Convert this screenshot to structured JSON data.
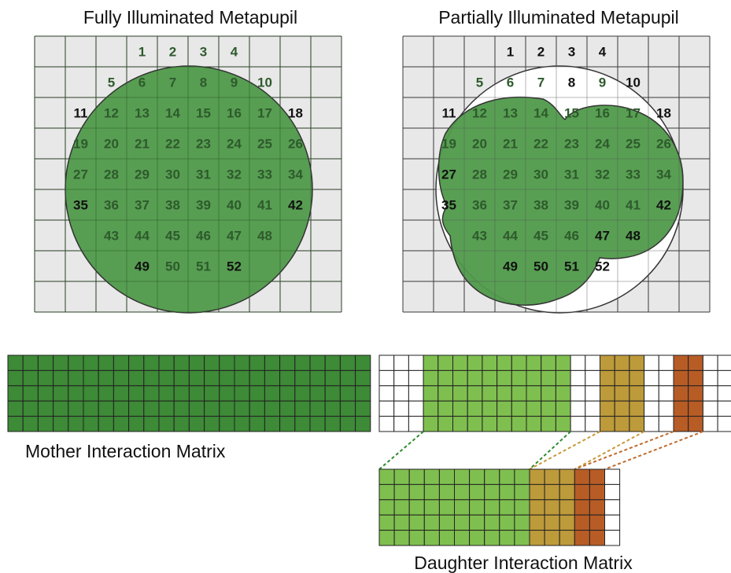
{
  "labels": {
    "full_title": "Fully Illuminated Metapupil",
    "partial_title": "Partially Illuminated Metapupil",
    "mother_label": "Mother Interaction Matrix",
    "daughter_label": "Daughter Interaction Matrix"
  },
  "full_metapupil": {
    "grid_cols": 10,
    "grid_rows": 9,
    "subaperture_numbers": [
      [
        "",
        "",
        "",
        "1",
        "2",
        "3",
        "4",
        "",
        "",
        ""
      ],
      [
        "",
        "",
        "5",
        "6",
        "7",
        "8",
        "9",
        "10",
        "",
        ""
      ],
      [
        "",
        "11",
        "12",
        "13",
        "14",
        "15",
        "16",
        "17",
        "18",
        ""
      ],
      [
        "",
        "19",
        "20",
        "21",
        "22",
        "23",
        "24",
        "25",
        "26",
        ""
      ],
      [
        "",
        "27",
        "28",
        "29",
        "30",
        "31",
        "32",
        "33",
        "34",
        ""
      ],
      [
        "",
        "35",
        "36",
        "37",
        "38",
        "39",
        "40",
        "41",
        "42",
        ""
      ],
      [
        "",
        "",
        "43",
        "44",
        "45",
        "46",
        "47",
        "48",
        "",
        ""
      ],
      [
        "",
        "",
        "",
        "49",
        "50",
        "51",
        "52",
        "",
        "",
        ""
      ],
      [
        "",
        "",
        "",
        "",
        "",
        "",
        "",
        "",
        "",
        ""
      ]
    ],
    "illuminated": "all"
  },
  "partial_metapupil": {
    "grid_cols": 10,
    "grid_rows": 9,
    "subaperture_numbers": [
      [
        "",
        "",
        "",
        "1",
        "2",
        "3",
        "4",
        "",
        "",
        ""
      ],
      [
        "",
        "",
        "5",
        "6",
        "7",
        "8",
        "9",
        "10",
        "",
        ""
      ],
      [
        "",
        "11",
        "12",
        "13",
        "14",
        "15",
        "16",
        "17",
        "18",
        ""
      ],
      [
        "",
        "19",
        "20",
        "21",
        "22",
        "23",
        "24",
        "25",
        "26",
        ""
      ],
      [
        "",
        "27",
        "28",
        "29",
        "30",
        "31",
        "32",
        "33",
        "34",
        ""
      ],
      [
        "",
        "35",
        "36",
        "37",
        "38",
        "39",
        "40",
        "41",
        "42",
        ""
      ],
      [
        "",
        "",
        "43",
        "44",
        "45",
        "46",
        "47",
        "48",
        "",
        ""
      ],
      [
        "",
        "",
        "",
        "49",
        "50",
        "51",
        "52",
        "",
        "",
        ""
      ],
      [
        "",
        "",
        "",
        "",
        "",
        "",
        "",
        "",
        "",
        ""
      ]
    ],
    "unilluminated_numbers": [
      "1",
      "2",
      "3",
      "4",
      "27",
      "35",
      "42",
      "47",
      "48",
      "51",
      "52"
    ]
  },
  "mother_matrix": {
    "cols": 24,
    "rows": 5,
    "color": "#3d8a37"
  },
  "partial_matrix": {
    "cols": 24,
    "rows": 5,
    "blocks": [
      {
        "start": 0,
        "count": 3,
        "color": "#ffffff"
      },
      {
        "start": 3,
        "count": 10,
        "color": "#7fbf4f"
      },
      {
        "start": 13,
        "count": 2,
        "color": "#ffffff"
      },
      {
        "start": 15,
        "count": 3,
        "color": "#bd9a3a"
      },
      {
        "start": 18,
        "count": 2,
        "color": "#ffffff"
      },
      {
        "start": 20,
        "count": 2,
        "color": "#b85c26"
      },
      {
        "start": 22,
        "count": 1,
        "color": "#ffffff"
      }
    ]
  },
  "daughter_matrix": {
    "cols": 16,
    "rows": 5,
    "blocks": [
      {
        "start": 0,
        "count": 10,
        "color": "#7fbf4f"
      },
      {
        "start": 10,
        "count": 3,
        "color": "#bd9a3a"
      },
      {
        "start": 13,
        "count": 2,
        "color": "#b85c26"
      }
    ]
  },
  "colors": {
    "grid_bg": "#e8e8e8",
    "grid_line": "#222222",
    "pupil_fill": "#4f9a4a",
    "pupil_edge": "#333333",
    "num_on_pupil": "#2e5a2c",
    "num_off_pupil": "#111111",
    "mapping_green": "#2e8b2e",
    "mapping_gold": "#c79a3a",
    "mapping_rust": "#c06a2a"
  }
}
